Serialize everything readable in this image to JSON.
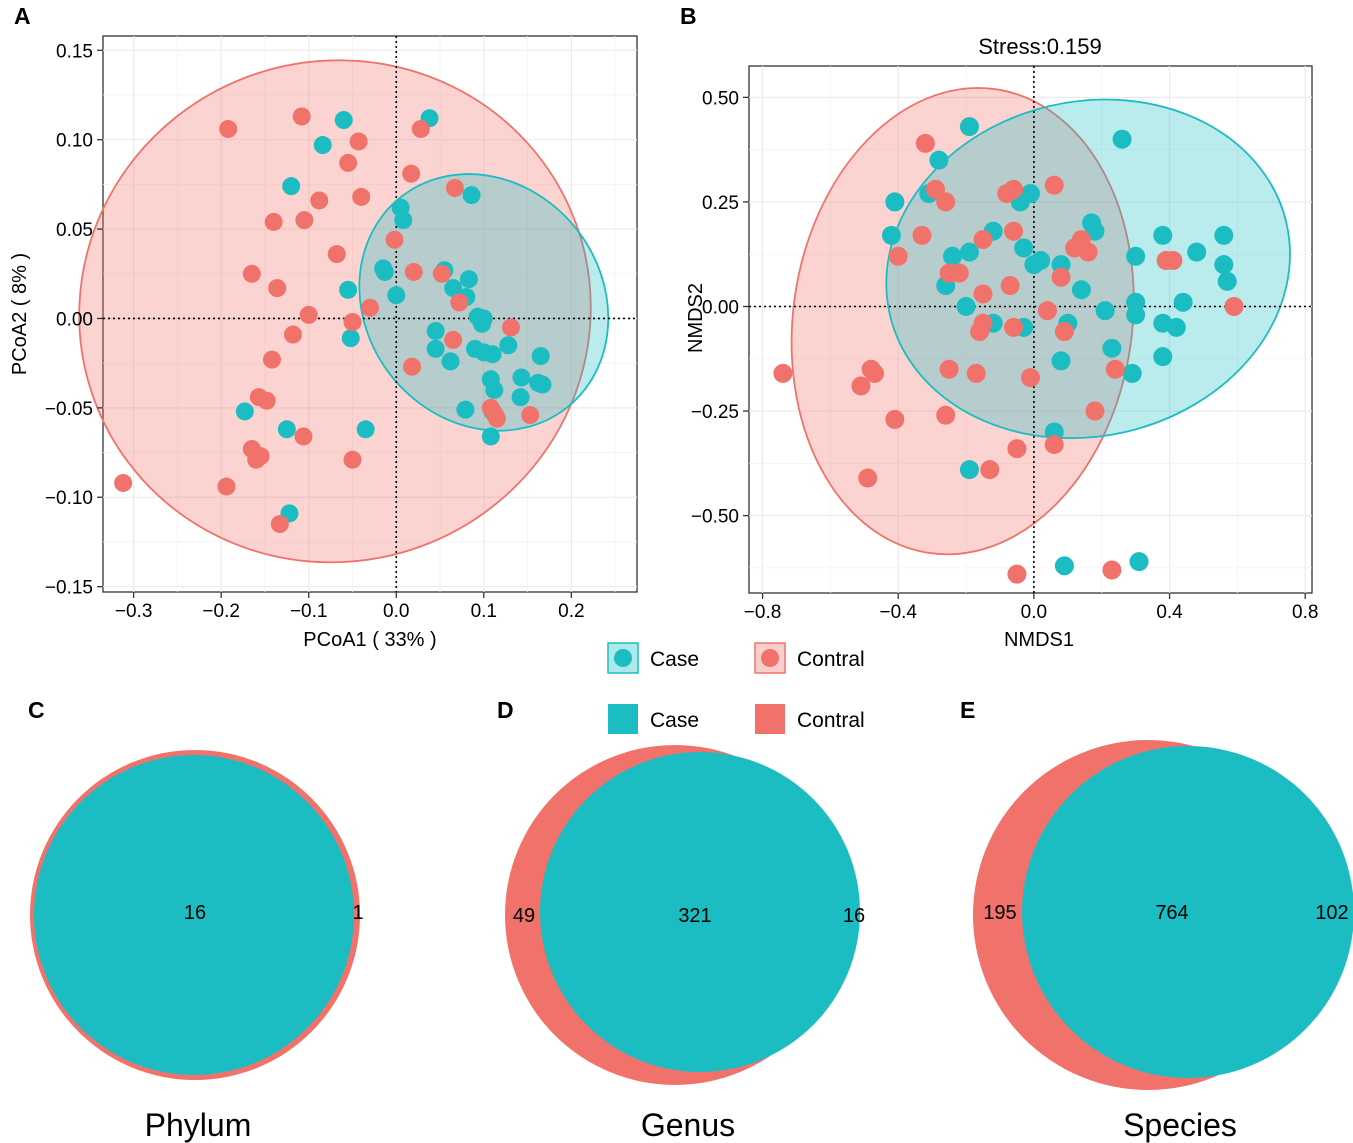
{
  "colors": {
    "case": "#1BBDC2",
    "control": "#F1726A",
    "grid": "#EBEBEB",
    "axis": "#333333"
  },
  "legend": {
    "points": [
      {
        "label": "Case",
        "group": "case"
      },
      {
        "label": "Contral",
        "group": "control"
      }
    ],
    "fills": [
      {
        "label": "Case",
        "group": "case"
      },
      {
        "label": "Contral",
        "group": "control"
      }
    ]
  },
  "chart_data": [
    {
      "panel": "A",
      "type": "scatter",
      "title": "",
      "xlabel": "PCoA1 ( 33% )",
      "ylabel": "PCoA2 ( 8% )",
      "xlim": [
        -0.335,
        0.275
      ],
      "ylim": [
        -0.153,
        0.158
      ],
      "xticks": [
        -0.3,
        -0.2,
        -0.1,
        0.0,
        0.1,
        0.2
      ],
      "xtick_labels": [
        "−0.3",
        "−0.2",
        "−0.1",
        "0.0",
        "0.1",
        "0.2"
      ],
      "yticks": [
        -0.15,
        -0.1,
        -0.05,
        0.0,
        0.05,
        0.1,
        0.15
      ],
      "ytick_labels": [
        "−0.15",
        "−0.10",
        "−0.05",
        "0.00",
        "0.05",
        "0.10",
        "0.15"
      ],
      "ellipses": [
        {
          "group": "control",
          "cx": -0.07,
          "cy": 0.004,
          "rx": 0.293,
          "ry": 0.14,
          "angle": -20
        },
        {
          "group": "case",
          "cx": 0.1,
          "cy": 0.009,
          "rx": 0.135,
          "ry": 0.075,
          "angle": -38
        }
      ],
      "series": [
        {
          "name": "Case",
          "group": "case",
          "points": [
            [
              -0.06,
              0.111
            ],
            [
              0.038,
              0.112
            ],
            [
              -0.084,
              0.097
            ],
            [
              -0.12,
              0.074
            ],
            [
              0.086,
              0.069
            ],
            [
              0.005,
              0.062
            ],
            [
              0.008,
              0.055
            ],
            [
              -0.015,
              0.028
            ],
            [
              -0.013,
              0.026
            ],
            [
              0.055,
              0.027
            ],
            [
              0.0,
              0.013
            ],
            [
              0.065,
              0.017
            ],
            [
              0.083,
              0.022
            ],
            [
              0.08,
              0.012
            ],
            [
              -0.055,
              0.016
            ],
            [
              0.093,
              0.001
            ],
            [
              0.1,
              0.0
            ],
            [
              0.098,
              -0.003
            ],
            [
              0.045,
              -0.007
            ],
            [
              -0.052,
              -0.011
            ],
            [
              0.045,
              -0.017
            ],
            [
              0.062,
              -0.024
            ],
            [
              0.09,
              -0.017
            ],
            [
              0.1,
              -0.019
            ],
            [
              0.128,
              -0.015
            ],
            [
              0.165,
              -0.021
            ],
            [
              0.11,
              -0.02
            ],
            [
              0.108,
              -0.034
            ],
            [
              0.143,
              -0.033
            ],
            [
              0.167,
              -0.037
            ],
            [
              0.162,
              -0.036
            ],
            [
              0.112,
              -0.04
            ],
            [
              0.142,
              -0.044
            ],
            [
              0.079,
              -0.051
            ],
            [
              0.11,
              -0.052
            ],
            [
              -0.173,
              -0.052
            ],
            [
              0.108,
              -0.066
            ],
            [
              -0.035,
              -0.062
            ],
            [
              -0.125,
              -0.062
            ],
            [
              -0.122,
              -0.109
            ]
          ]
        },
        {
          "name": "Contral",
          "group": "control",
          "points": [
            [
              -0.192,
              0.106
            ],
            [
              -0.108,
              0.113
            ],
            [
              -0.043,
              0.099
            ],
            [
              0.028,
              0.106
            ],
            [
              -0.055,
              0.087
            ],
            [
              0.017,
              0.081
            ],
            [
              0.067,
              0.073
            ],
            [
              -0.088,
              0.066
            ],
            [
              -0.04,
              0.068
            ],
            [
              -0.105,
              0.055
            ],
            [
              -0.14,
              0.054
            ],
            [
              -0.002,
              0.044
            ],
            [
              -0.068,
              0.036
            ],
            [
              0.02,
              0.026
            ],
            [
              -0.165,
              0.025
            ],
            [
              -0.136,
              0.017
            ],
            [
              0.052,
              0.025
            ],
            [
              -0.1,
              0.002
            ],
            [
              -0.05,
              -0.002
            ],
            [
              -0.03,
              0.006
            ],
            [
              0.072,
              0.009
            ],
            [
              0.131,
              -0.005
            ],
            [
              -0.118,
              -0.009
            ],
            [
              0.065,
              -0.012
            ],
            [
              -0.142,
              -0.023
            ],
            [
              0.018,
              -0.027
            ],
            [
              -0.157,
              -0.044
            ],
            [
              -0.148,
              -0.046
            ],
            [
              0.108,
              -0.05
            ],
            [
              0.113,
              -0.054
            ],
            [
              0.153,
              -0.054
            ],
            [
              0.115,
              -0.056
            ],
            [
              -0.106,
              -0.066
            ],
            [
              -0.165,
              -0.073
            ],
            [
              -0.16,
              -0.079
            ],
            [
              -0.155,
              -0.077
            ],
            [
              -0.05,
              -0.079
            ],
            [
              -0.312,
              -0.092
            ],
            [
              -0.194,
              -0.094
            ],
            [
              -0.133,
              -0.115
            ]
          ]
        }
      ]
    },
    {
      "panel": "B",
      "type": "scatter",
      "title": "Stress:0.159",
      "xlabel": "NMDS1",
      "ylabel": "NMDS2",
      "xlim": [
        -0.84,
        0.82
      ],
      "ylim": [
        -0.685,
        0.575
      ],
      "xticks": [
        -0.8,
        -0.4,
        0.0,
        0.4,
        0.8
      ],
      "xtick_labels": [
        "−0.8",
        "−0.4",
        "0.0",
        "0.4",
        "0.8"
      ],
      "yticks": [
        -0.5,
        -0.25,
        0.0,
        0.25,
        0.5
      ],
      "ytick_labels": [
        "−0.50",
        "−0.25",
        "0.00",
        "0.25",
        "0.50"
      ],
      "ellipses": [
        {
          "group": "control",
          "cx": -0.21,
          "cy": -0.035,
          "rx": 0.5,
          "ry": 0.56,
          "angle": 8
        },
        {
          "group": "case",
          "cx": 0.16,
          "cy": 0.09,
          "rx": 0.6,
          "ry": 0.4,
          "angle": -13
        }
      ],
      "series": [
        {
          "name": "Case",
          "group": "case",
          "points": [
            [
              -0.19,
              0.43
            ],
            [
              0.26,
              0.4
            ],
            [
              -0.28,
              0.35
            ],
            [
              -0.41,
              0.25
            ],
            [
              -0.31,
              0.27
            ],
            [
              -0.01,
              0.27
            ],
            [
              -0.04,
              0.25
            ],
            [
              -0.42,
              0.17
            ],
            [
              -0.12,
              0.18
            ],
            [
              0.17,
              0.2
            ],
            [
              0.18,
              0.18
            ],
            [
              0.38,
              0.17
            ],
            [
              0.56,
              0.17
            ],
            [
              0.48,
              0.13
            ],
            [
              -0.19,
              0.13
            ],
            [
              -0.24,
              0.12
            ],
            [
              -0.03,
              0.14
            ],
            [
              0.0,
              0.1
            ],
            [
              0.02,
              0.11
            ],
            [
              0.08,
              0.1
            ],
            [
              0.3,
              0.12
            ],
            [
              0.56,
              0.1
            ],
            [
              0.57,
              0.06
            ],
            [
              -0.26,
              0.05
            ],
            [
              0.14,
              0.04
            ],
            [
              0.3,
              0.01
            ],
            [
              0.44,
              0.01
            ],
            [
              -0.2,
              0.0
            ],
            [
              0.21,
              -0.01
            ],
            [
              0.3,
              -0.02
            ],
            [
              0.38,
              -0.04
            ],
            [
              0.42,
              -0.05
            ],
            [
              -0.12,
              -0.04
            ],
            [
              0.1,
              -0.04
            ],
            [
              -0.03,
              -0.05
            ],
            [
              0.23,
              -0.1
            ],
            [
              0.38,
              -0.12
            ],
            [
              0.08,
              -0.13
            ],
            [
              0.29,
              -0.16
            ],
            [
              0.06,
              -0.3
            ],
            [
              -0.19,
              -0.39
            ],
            [
              0.09,
              -0.62
            ],
            [
              0.31,
              -0.61
            ]
          ]
        },
        {
          "name": "Contral",
          "group": "control",
          "points": [
            [
              -0.32,
              0.39
            ],
            [
              -0.29,
              0.28
            ],
            [
              -0.08,
              0.27
            ],
            [
              -0.06,
              0.28
            ],
            [
              0.06,
              0.29
            ],
            [
              -0.26,
              0.25
            ],
            [
              -0.33,
              0.17
            ],
            [
              -0.06,
              0.18
            ],
            [
              0.14,
              0.16
            ],
            [
              0.12,
              0.14
            ],
            [
              -0.15,
              0.16
            ],
            [
              -0.4,
              0.12
            ],
            [
              0.16,
              0.13
            ],
            [
              -0.25,
              0.08
            ],
            [
              -0.22,
              0.08
            ],
            [
              0.08,
              0.07
            ],
            [
              0.39,
              0.11
            ],
            [
              0.41,
              0.11
            ],
            [
              -0.15,
              0.03
            ],
            [
              -0.07,
              0.05
            ],
            [
              0.04,
              -0.01
            ],
            [
              -0.15,
              -0.04
            ],
            [
              -0.16,
              -0.06
            ],
            [
              -0.06,
              -0.05
            ],
            [
              0.09,
              -0.06
            ],
            [
              0.59,
              0.0
            ],
            [
              -0.25,
              -0.15
            ],
            [
              -0.17,
              -0.16
            ],
            [
              0.24,
              -0.15
            ],
            [
              -0.01,
              -0.17
            ],
            [
              0.18,
              -0.25
            ],
            [
              -0.74,
              -0.16
            ],
            [
              -0.51,
              -0.19
            ],
            [
              -0.48,
              -0.15
            ],
            [
              -0.47,
              -0.16
            ],
            [
              -0.26,
              -0.26
            ],
            [
              -0.41,
              -0.27
            ],
            [
              -0.05,
              -0.34
            ],
            [
              0.06,
              -0.33
            ],
            [
              -0.13,
              -0.39
            ],
            [
              -0.49,
              -0.41
            ],
            [
              -0.05,
              -0.64
            ],
            [
              0.23,
              -0.63
            ]
          ]
        }
      ]
    },
    {
      "panel": "C",
      "type": "venn",
      "title": "Phylum",
      "sets": [
        {
          "name": "Contral",
          "group": "control"
        },
        {
          "name": "Case",
          "group": "case"
        }
      ],
      "counts": {
        "left_only": "",
        "both": "16",
        "right_only": "1"
      }
    },
    {
      "panel": "D",
      "type": "venn",
      "title": "Genus",
      "sets": [
        {
          "name": "Contral",
          "group": "control"
        },
        {
          "name": "Case",
          "group": "case"
        }
      ],
      "counts": {
        "left_only": "49",
        "both": "321",
        "right_only": "16"
      }
    },
    {
      "panel": "E",
      "type": "venn",
      "title": "Species",
      "sets": [
        {
          "name": "Contral",
          "group": "control"
        },
        {
          "name": "Case",
          "group": "case"
        }
      ],
      "counts": {
        "left_only": "195",
        "both": "764",
        "right_only": "102"
      }
    }
  ]
}
